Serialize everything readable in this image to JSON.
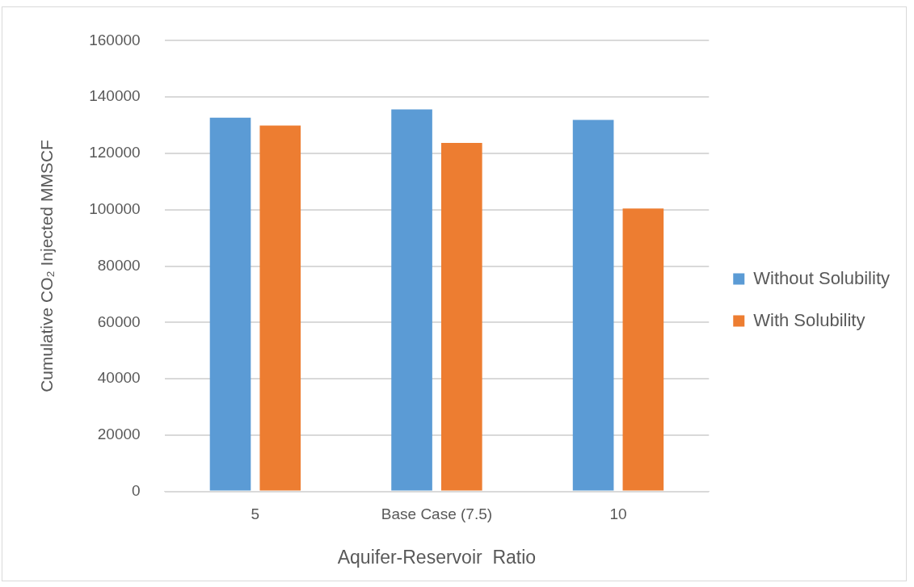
{
  "chart_data": {
    "type": "bar",
    "xlabel": "Aquifer-Reservoir  Ratio",
    "ylabel": "Cumulative CO₂ Injected MMSCF",
    "categories": [
      "5",
      "Base Case (7.5)",
      "10"
    ],
    "series": [
      {
        "name": "Without Solubility",
        "color": "#5b9bd5",
        "values": [
          132700,
          135600,
          131900
        ]
      },
      {
        "name": "With Solubility",
        "color": "#ed7d31",
        "values": [
          129900,
          123700,
          100400
        ]
      }
    ],
    "ylim": [
      0,
      160000
    ],
    "yticks": [
      0,
      20000,
      40000,
      60000,
      80000,
      100000,
      120000,
      140000,
      160000
    ],
    "grid": "y",
    "legend": "right"
  }
}
